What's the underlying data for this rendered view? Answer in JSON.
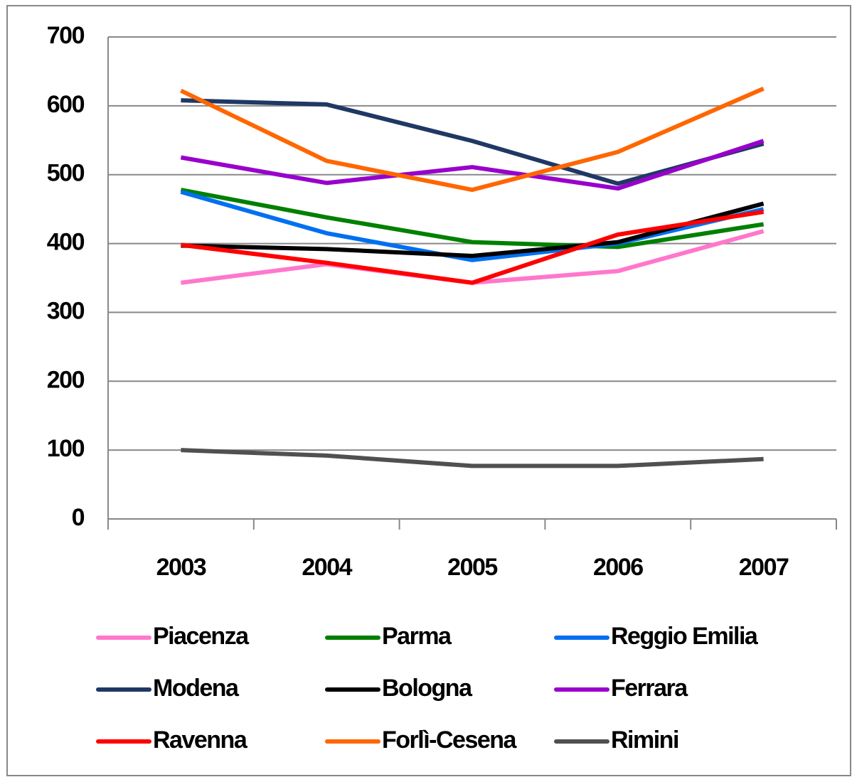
{
  "chart_data": {
    "type": "line",
    "categories": [
      "2003",
      "2004",
      "2005",
      "2006",
      "2007"
    ],
    "ylim": [
      0,
      700
    ],
    "yticks": [
      0,
      100,
      200,
      300,
      400,
      500,
      600,
      700
    ],
    "grid": true,
    "series": [
      {
        "name": "Piacenza",
        "color": "#ff77cc",
        "values": [
          343,
          370,
          343,
          360,
          418
        ]
      },
      {
        "name": "Parma",
        "color": "#008000",
        "values": [
          478,
          438,
          402,
          395,
          428
        ]
      },
      {
        "name": "Reggio Emilia",
        "color": "#0070f0",
        "values": [
          475,
          415,
          376,
          400,
          450
        ]
      },
      {
        "name": "Modena",
        "color": "#1f3864",
        "values": [
          608,
          602,
          549,
          487,
          545
        ]
      },
      {
        "name": "Bologna",
        "color": "#000000",
        "values": [
          397,
          392,
          382,
          402,
          458
        ]
      },
      {
        "name": "Ferrara",
        "color": "#9900cc",
        "values": [
          525,
          488,
          511,
          480,
          549
        ]
      },
      {
        "name": "Ravenna",
        "color": "#ff0000",
        "values": [
          398,
          372,
          343,
          413,
          446
        ]
      },
      {
        "name": "Forlì-Cesena",
        "color": "#ff6600",
        "values": [
          622,
          520,
          478,
          533,
          625
        ]
      },
      {
        "name": "Rimini",
        "color": "#505050",
        "values": [
          100,
          92,
          77,
          77,
          87
        ]
      }
    ]
  }
}
